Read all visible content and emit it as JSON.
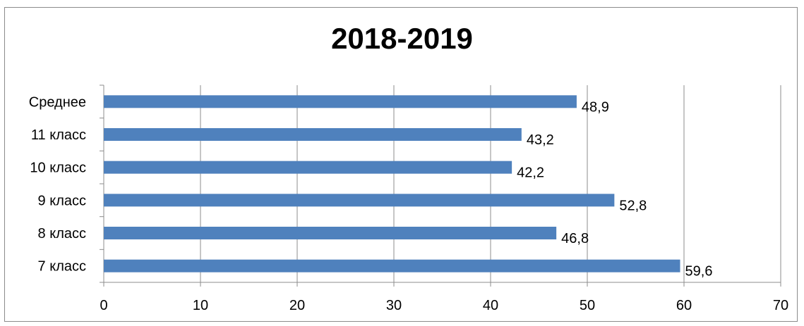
{
  "chart_data": {
    "type": "bar",
    "orientation": "horizontal",
    "title": "2018-2019",
    "xlabel": "",
    "ylabel": "",
    "categories": [
      "7 класс",
      "8 класс",
      "9 класс",
      "10 класс",
      "11 класс",
      "Среднее"
    ],
    "values": [
      59.6,
      46.8,
      52.8,
      42.2,
      43.2,
      48.9
    ],
    "data_labels": [
      "59,6",
      "46,8",
      "52,8",
      "42,2",
      "43,2",
      "48,9"
    ],
    "xlim": [
      0,
      70
    ],
    "x_ticks": [
      0,
      10,
      20,
      30,
      40,
      50,
      60,
      70
    ],
    "grid": true,
    "legend": "none",
    "bar_color": "#4f81bd"
  }
}
